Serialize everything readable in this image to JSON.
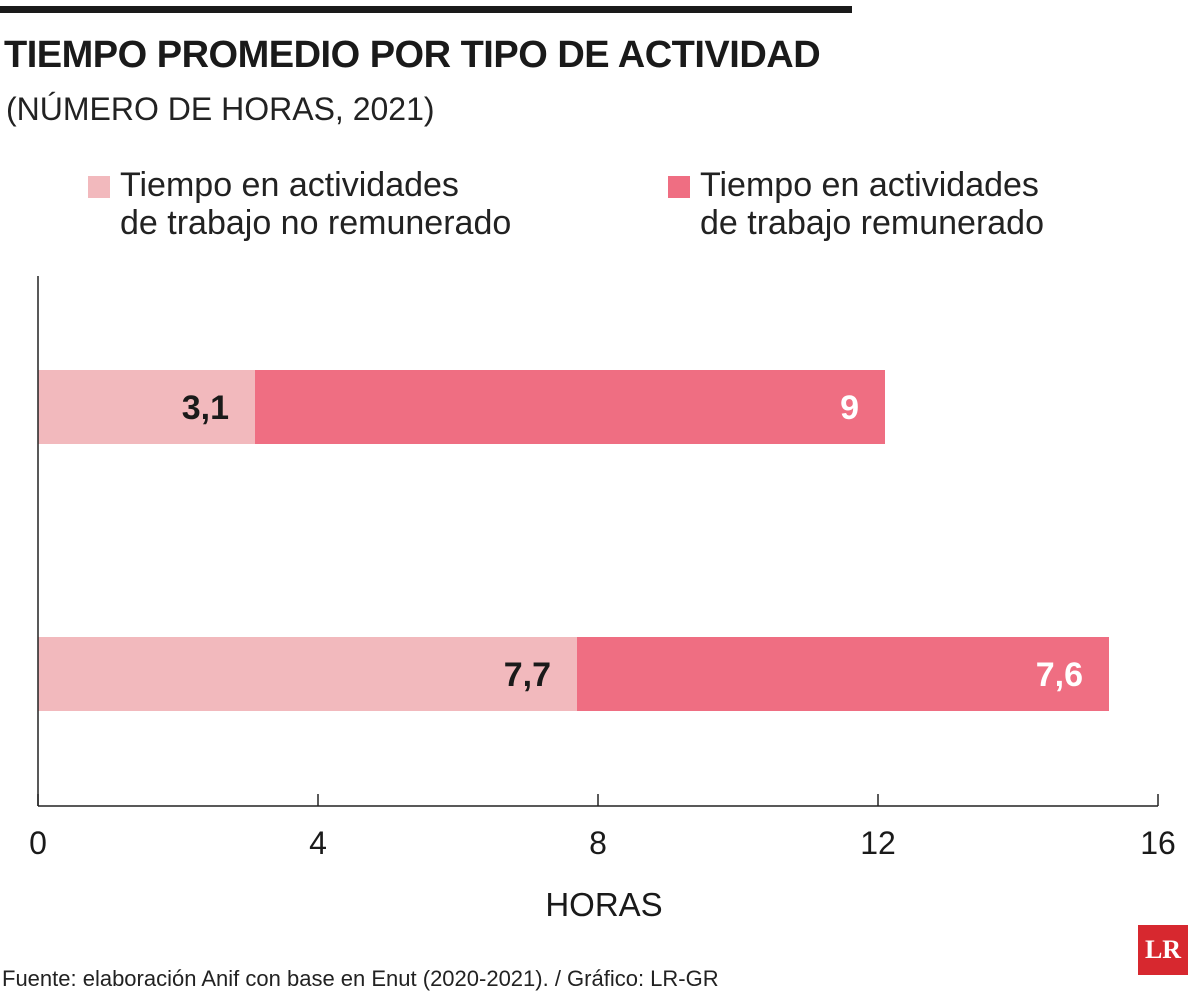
{
  "title": "TIEMPO PROMEDIO POR TIPO DE ACTIVIDAD",
  "subtitle": "(NÚMERO DE HORAS, 2021)",
  "legend": [
    {
      "line1": "Tiempo en actividades",
      "line2": "de trabajo no remunerado",
      "color": "#f2b9bd"
    },
    {
      "line1": "Tiempo en actividades",
      "line2": "de trabajo remunerado",
      "color": "#ef6e82"
    }
  ],
  "source": "Fuente: elaboración Anif con base en Enut (2020-2021). / Gráfico: LR-GR",
  "logo_text": "LR",
  "chart_data": {
    "type": "bar",
    "orientation": "horizontal",
    "stacked": true,
    "categories": [
      "",
      ""
    ],
    "series": [
      {
        "name": "Tiempo en actividades de trabajo no remunerado",
        "values": [
          3.1,
          7.7
        ],
        "labels": [
          "3,1",
          "7,7"
        ],
        "color": "#f2b9bd",
        "label_color": "#1a1a1a"
      },
      {
        "name": "Tiempo en actividades de trabajo remunerado",
        "values": [
          9,
          7.6
        ],
        "labels": [
          "9",
          "7,6"
        ],
        "color": "#ef6e82",
        "label_color": "#ffffff"
      }
    ],
    "xlabel": "HORAS",
    "ylabel": "",
    "xlim": [
      0,
      16
    ],
    "xticks": [
      0,
      4,
      8,
      12,
      16
    ],
    "xtick_labels": [
      "0",
      "4",
      "8",
      "12",
      "16"
    ],
    "grid": false,
    "legend_position": "top"
  }
}
